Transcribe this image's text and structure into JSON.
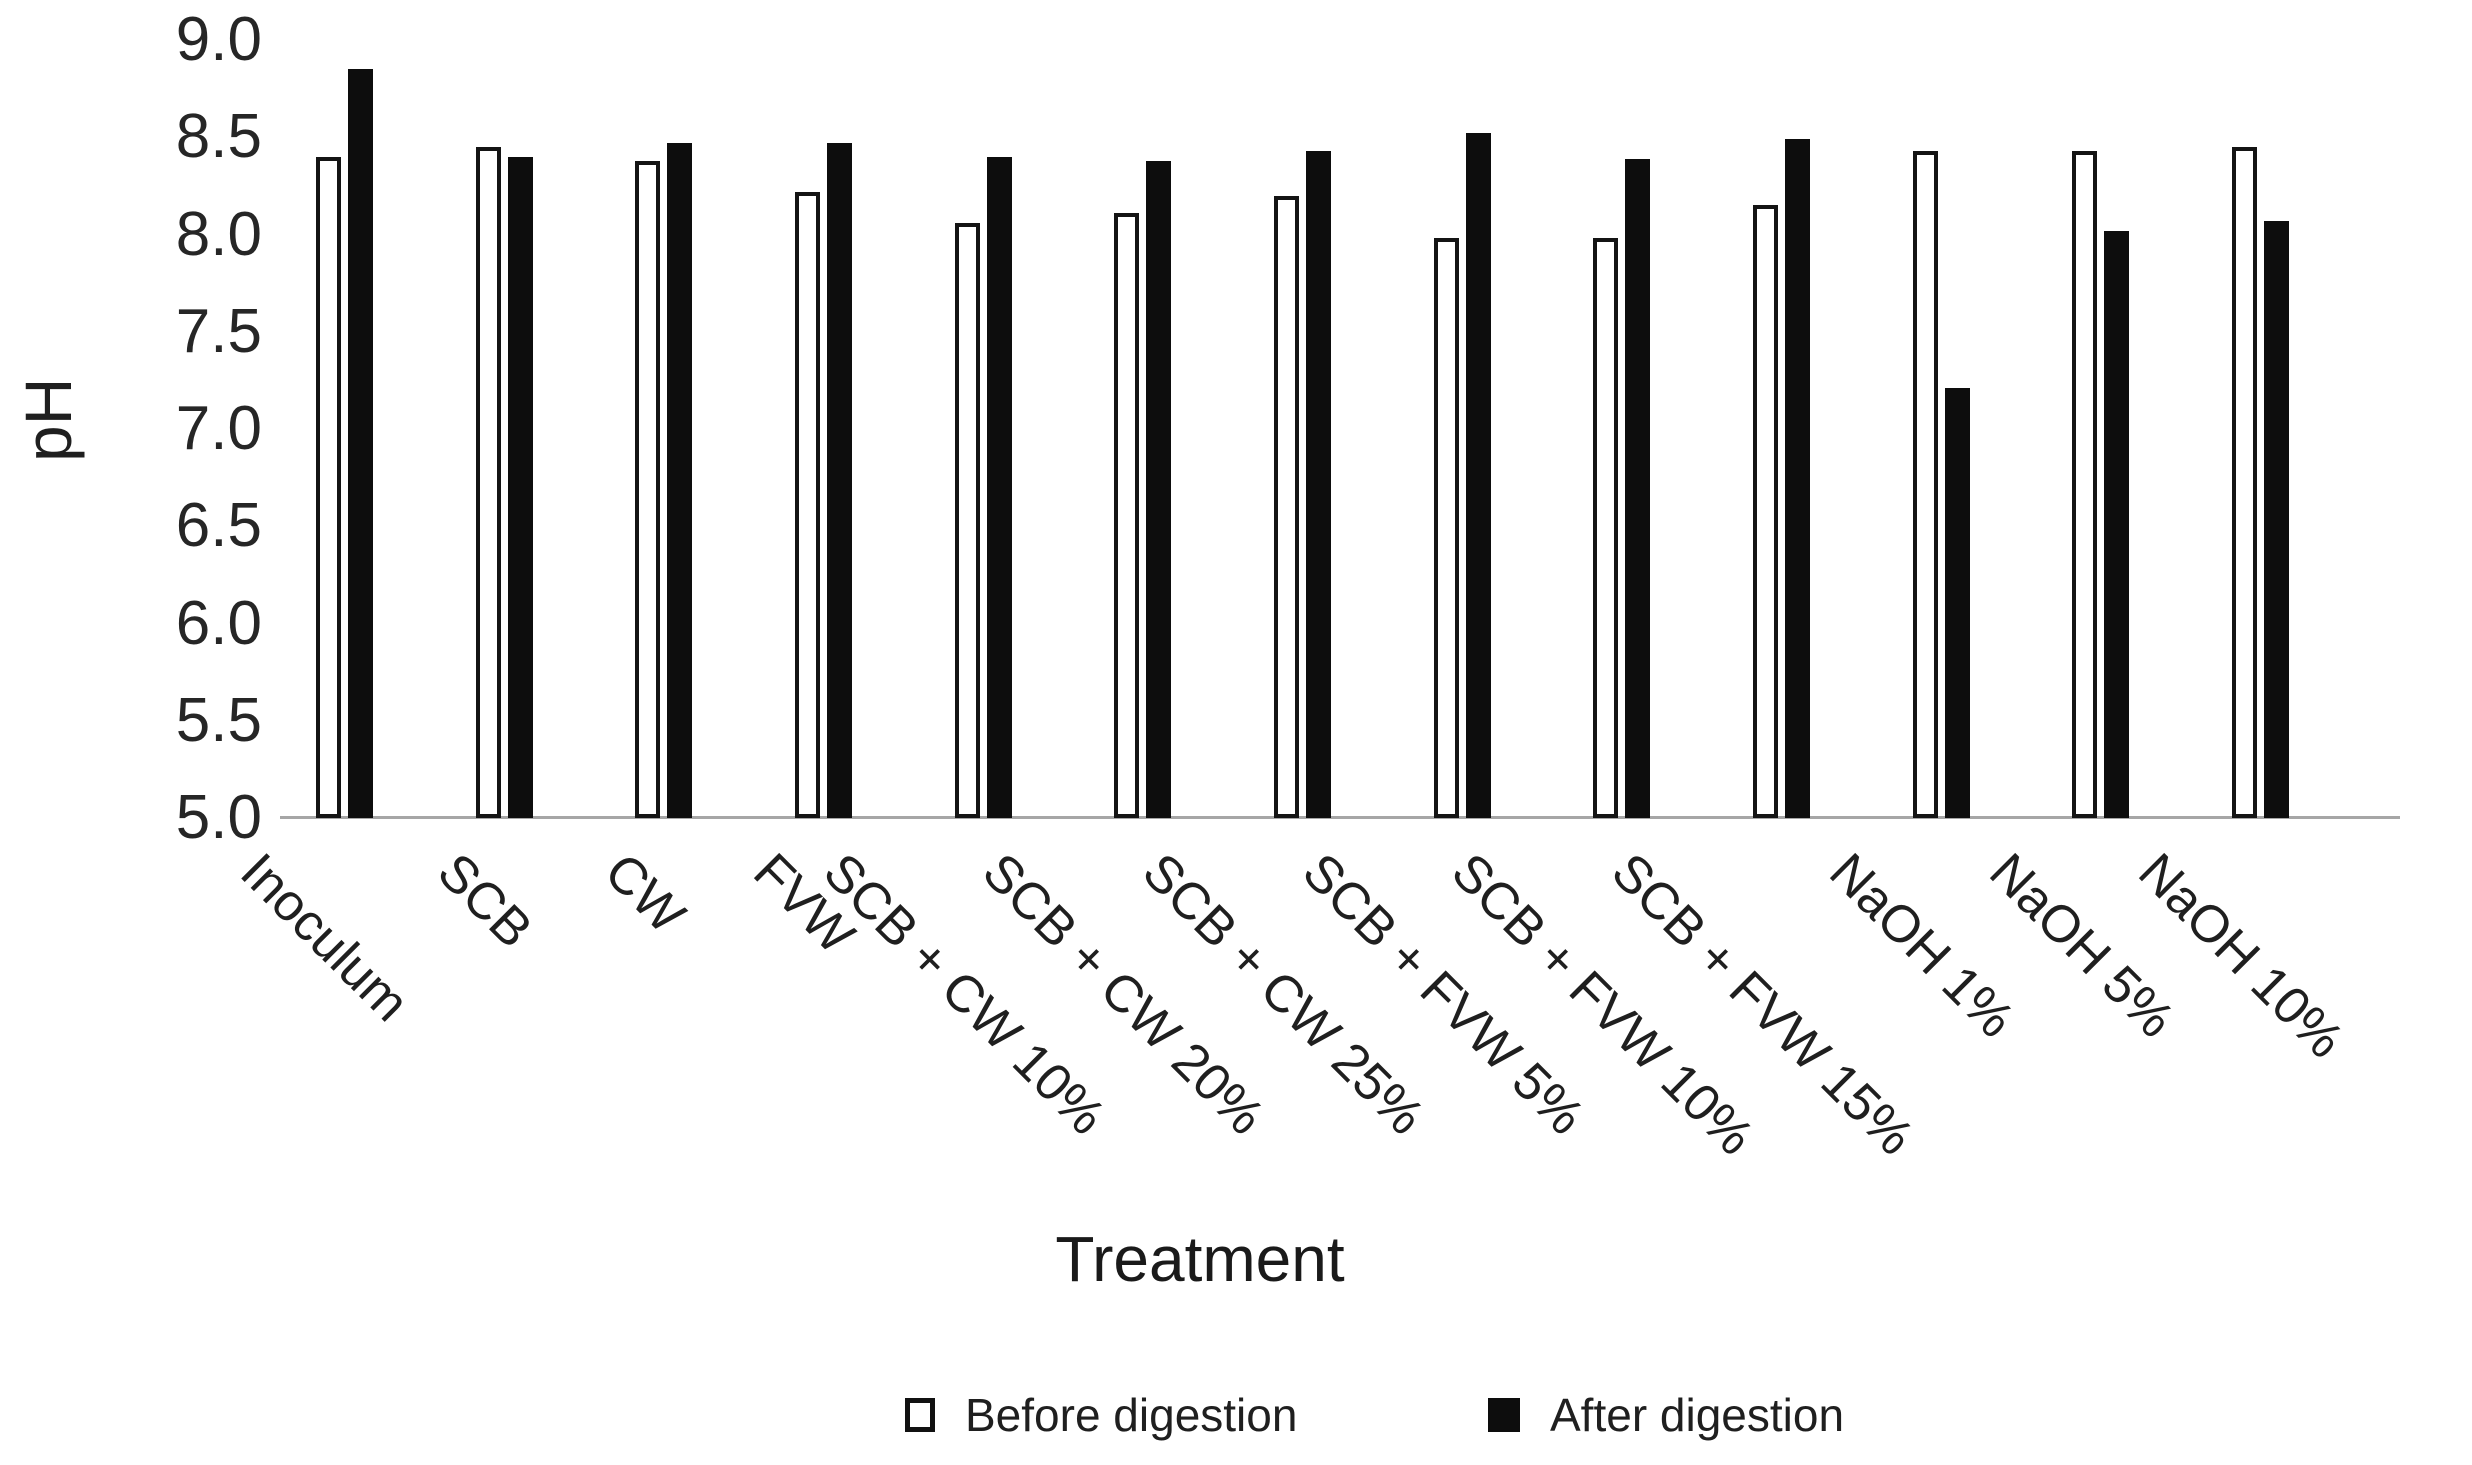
{
  "figure": {
    "background": "#ffffff",
    "text_color": "#1f1f1f",
    "axis_line_color": "#a6a6a6",
    "before_bar_fill": "#ffffff",
    "before_bar_border": "#141414",
    "after_bar_fill": "#0d0d0d"
  },
  "axes": {
    "y_title": "pH",
    "x_title": "Treatment",
    "y_ticks": [
      "9.0",
      "8.5",
      "8.0",
      "7.5",
      "7.0",
      "6.5",
      "6.0",
      "5.5",
      "5.0"
    ]
  },
  "legend": [
    {
      "marker": "open-square-icon",
      "label": "Before digestion"
    },
    {
      "marker": "filled-square-icon",
      "label": "After digestion"
    }
  ],
  "chart_data": {
    "type": "bar",
    "title": "",
    "xlabel": "Treatment",
    "ylabel": "pH",
    "ylim": [
      5.0,
      9.0
    ],
    "ytick_step": 0.5,
    "grid": false,
    "legend_position": "bottom",
    "categories": [
      "Inoculum",
      "SCB",
      "CW",
      "FVW",
      "SCB + CW 10%",
      "SCB + CW 20%",
      "SCB + CW 25%",
      "SCB + FVW 5%",
      "SCB + FVW 10%",
      "SCB + FVW 15%",
      "NaOH 1%",
      "NaOH 5%",
      "NaOH 10%"
    ],
    "series": [
      {
        "name": "Before digestion",
        "fill": "white-outlined",
        "values": [
          8.4,
          8.45,
          8.38,
          8.22,
          8.06,
          8.11,
          8.2,
          7.98,
          7.98,
          8.15,
          8.43,
          8.43,
          8.45
        ]
      },
      {
        "name": "After digestion",
        "fill": "solid-black",
        "values": [
          8.85,
          8.4,
          8.47,
          8.47,
          8.4,
          8.38,
          8.43,
          8.52,
          8.39,
          8.49,
          7.21,
          8.02,
          8.07
        ]
      }
    ]
  }
}
